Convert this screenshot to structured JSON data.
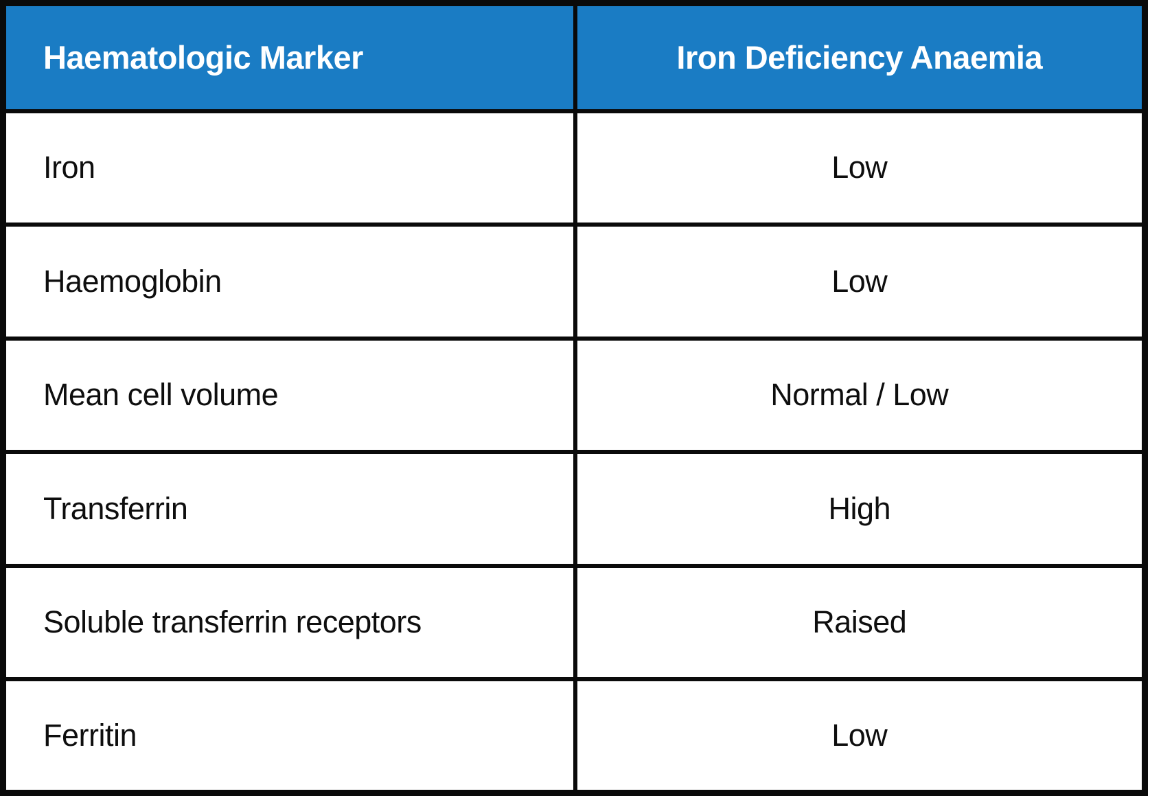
{
  "table": {
    "columns": [
      {
        "label": "Haematologic Marker"
      },
      {
        "label": "Iron Deficiency Anaemia"
      }
    ],
    "rows": [
      {
        "marker": "Iron",
        "value": "Low"
      },
      {
        "marker": "Haemoglobin",
        "value": "Low"
      },
      {
        "marker": "Mean cell volume",
        "value": "Normal / Low"
      },
      {
        "marker": "Transferrin",
        "value": "High"
      },
      {
        "marker": "Soluble transferrin receptors",
        "value": "Raised"
      },
      {
        "marker": "Ferritin",
        "value": "Low"
      }
    ],
    "colors": {
      "header_bg": "#1A7CC4",
      "header_text": "#ffffff",
      "body_text": "#0e0e0e",
      "border": "#0a0a0a"
    }
  },
  "chart_data": {
    "type": "table",
    "title": "",
    "columns": [
      "Haematologic Marker",
      "Iron Deficiency Anaemia"
    ],
    "rows": [
      [
        "Iron",
        "Low"
      ],
      [
        "Haemoglobin",
        "Low"
      ],
      [
        "Mean cell volume",
        "Normal / Low"
      ],
      [
        "Transferrin",
        "High"
      ],
      [
        "Soluble transferrin receptors",
        "Raised"
      ],
      [
        "Ferritin",
        "Low"
      ]
    ]
  }
}
